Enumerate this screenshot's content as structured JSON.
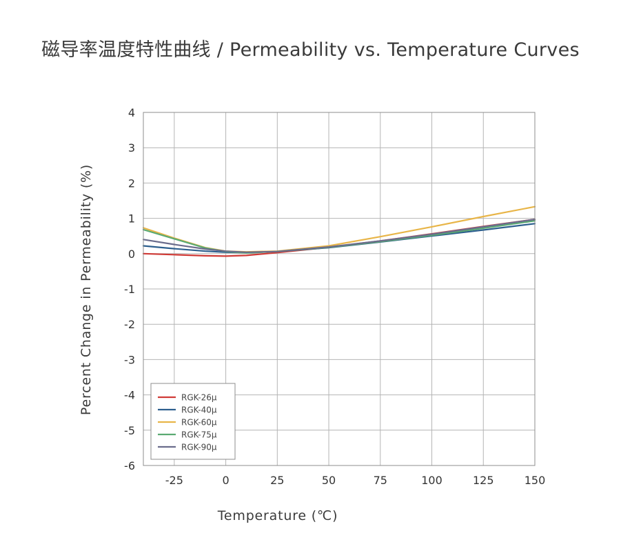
{
  "page": {
    "title": "磁导率温度特性曲线 / Permeability vs. Temperature Curves"
  },
  "chart_data": {
    "type": "line",
    "title": "",
    "xlabel": "Temperature (℃)",
    "ylabel": "Percent Change in Permeability (%)",
    "xlim": [
      -40,
      150
    ],
    "ylim": [
      -6,
      4
    ],
    "xticks": [
      -25,
      0,
      25,
      50,
      75,
      100,
      125,
      150
    ],
    "xtick_labels": [
      "-25",
      "0",
      "25",
      "50",
      "75",
      "100",
      "125",
      "150"
    ],
    "yticks": [
      4,
      3,
      2,
      1,
      0,
      -1,
      -2,
      -3,
      -4,
      -5,
      -6
    ],
    "ytick_labels": [
      "4",
      "3",
      "2",
      "1",
      "0",
      "-1",
      "-2",
      "-3",
      "-4",
      "-5",
      "-6"
    ],
    "grid": true,
    "legend_position": "bottom-left",
    "series": [
      {
        "name": "RGK-26μ",
        "color": "#d03a36",
        "x": [
          -40,
          -25,
          -10,
          0,
          10,
          25,
          50,
          75,
          100,
          125,
          150
        ],
        "y": [
          0.0,
          -0.03,
          -0.06,
          -0.07,
          -0.05,
          0.03,
          0.18,
          0.36,
          0.56,
          0.77,
          0.97
        ]
      },
      {
        "name": "RGK-40μ",
        "color": "#2d5f8e",
        "x": [
          -40,
          -25,
          -10,
          0,
          10,
          25,
          50,
          75,
          100,
          125,
          150
        ],
        "y": [
          0.22,
          0.14,
          0.07,
          0.04,
          0.03,
          0.06,
          0.17,
          0.33,
          0.5,
          0.67,
          0.85
        ]
      },
      {
        "name": "RGK-60μ",
        "color": "#e8b548",
        "x": [
          -40,
          -25,
          -10,
          0,
          10,
          25,
          50,
          75,
          100,
          125,
          150
        ],
        "y": [
          0.73,
          0.44,
          0.17,
          0.07,
          0.05,
          0.07,
          0.22,
          0.48,
          0.76,
          1.05,
          1.33
        ]
      },
      {
        "name": "RGK-75μ",
        "color": "#5aaa72",
        "x": [
          -40,
          -25,
          -10,
          0,
          10,
          25,
          50,
          75,
          100,
          125,
          150
        ],
        "y": [
          0.68,
          0.42,
          0.16,
          0.06,
          0.02,
          0.06,
          0.18,
          0.34,
          0.52,
          0.72,
          0.93
        ]
      },
      {
        "name": "RGK-90μ",
        "color": "#6a6c8c",
        "x": [
          -40,
          -25,
          -10,
          0,
          10,
          25,
          50,
          75,
          100,
          125,
          150
        ],
        "y": [
          0.4,
          0.26,
          0.13,
          0.07,
          0.04,
          0.06,
          0.19,
          0.36,
          0.55,
          0.76,
          0.97
        ]
      }
    ]
  }
}
